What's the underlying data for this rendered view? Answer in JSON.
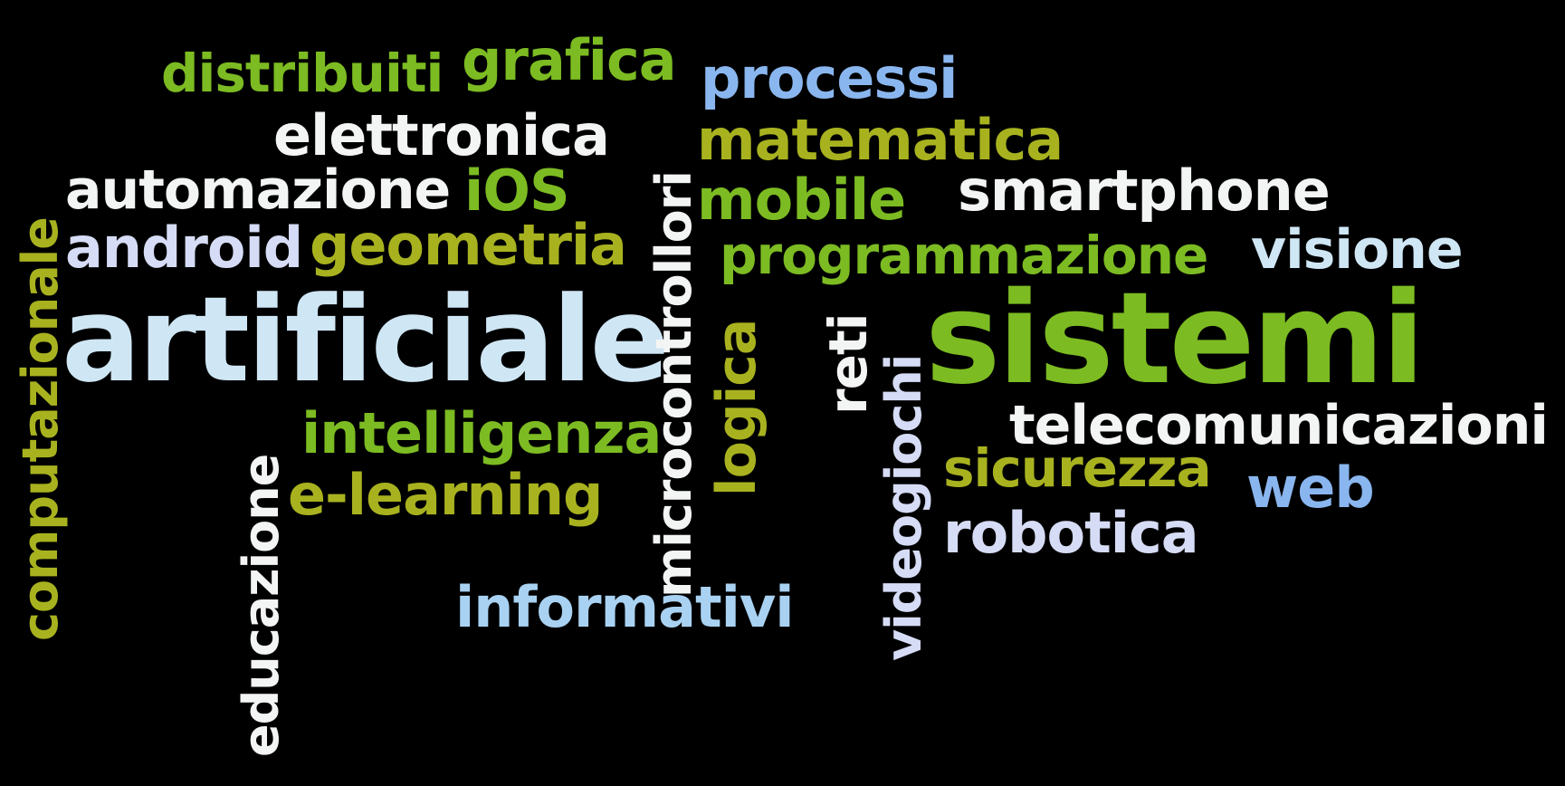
{
  "background": "#000000",
  "palette": {
    "green": "#7cbb22",
    "olive": "#a8b21f",
    "white": "#f3f5f4",
    "pale_blue": "#cfe6f5",
    "lavender": "#d6dcf5",
    "blue": "#8ab6ef",
    "sky": "#a9d2f2"
  },
  "words": {
    "distribuiti": "distribuiti",
    "grafica": "grafica",
    "processi": "processi",
    "elettronica": "elettronica",
    "matematica": "matematica",
    "automazione": "automazione",
    "ios": "iOS",
    "mobile": "mobile",
    "smartphone": "smartphone",
    "android": "android",
    "geometria": "geometria",
    "programmazione": "programmazione",
    "visione": "visione",
    "computazionale": "computazionale",
    "artificiale": "artificiale",
    "microcontrollori": "microcontrollori",
    "logica": "logica",
    "reti": "reti",
    "videogiochi": "videogiochi",
    "sistemi": "sistemi",
    "telecomunicazioni": "telecomunicazioni",
    "intelligenza": "intelligenza",
    "sicurezza": "sicurezza",
    "web": "web",
    "educazione": "educazione",
    "e_learning": "e-learning",
    "robotica": "robotica",
    "informativi": "informativi"
  }
}
